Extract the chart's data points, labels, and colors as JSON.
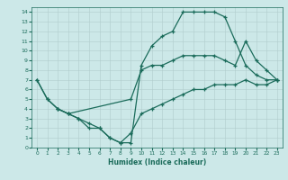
{
  "xlabel": "Humidex (Indice chaleur)",
  "bg_color": "#cce8e8",
  "grid_color": "#b0cccc",
  "line_color": "#1a6b5a",
  "xlim": [
    -0.5,
    23.5
  ],
  "ylim": [
    0,
    14.5
  ],
  "xticks": [
    0,
    1,
    2,
    3,
    4,
    5,
    6,
    7,
    8,
    9,
    10,
    11,
    12,
    13,
    14,
    15,
    16,
    17,
    18,
    19,
    20,
    21,
    22,
    23
  ],
  "yticks": [
    0,
    1,
    2,
    3,
    4,
    5,
    6,
    7,
    8,
    9,
    10,
    11,
    12,
    13,
    14
  ],
  "line1_x": [
    0,
    1,
    2,
    3,
    4,
    5,
    6,
    7,
    8,
    9,
    10,
    11,
    12,
    13,
    14,
    15,
    16,
    17,
    18,
    19,
    20,
    21,
    22,
    23
  ],
  "line1_y": [
    7,
    5,
    4,
    3.5,
    3,
    2,
    2,
    1,
    0.5,
    0.5,
    8.5,
    10.5,
    11.5,
    12,
    14,
    14,
    14,
    14,
    13.5,
    11,
    8.5,
    7.5,
    7,
    7
  ],
  "line2_x": [
    0,
    1,
    2,
    3,
    9,
    10,
    11,
    12,
    13,
    14,
    15,
    16,
    17,
    18,
    19,
    20,
    21,
    22,
    23
  ],
  "line2_y": [
    7,
    5,
    4,
    3.5,
    5,
    8,
    8.5,
    8.5,
    9,
    9.5,
    9.5,
    9.5,
    9.5,
    9,
    8.5,
    11,
    9,
    8,
    7
  ],
  "line3_x": [
    2,
    3,
    4,
    5,
    6,
    7,
    8,
    9,
    10,
    11,
    12,
    13,
    14,
    15,
    16,
    17,
    18,
    19,
    20,
    21,
    22,
    23
  ],
  "line3_y": [
    4,
    3.5,
    3,
    2.5,
    2,
    1,
    0.5,
    1.5,
    3.5,
    4,
    4.5,
    5,
    5.5,
    6,
    6,
    6.5,
    6.5,
    6.5,
    7,
    6.5,
    6.5,
    7
  ]
}
